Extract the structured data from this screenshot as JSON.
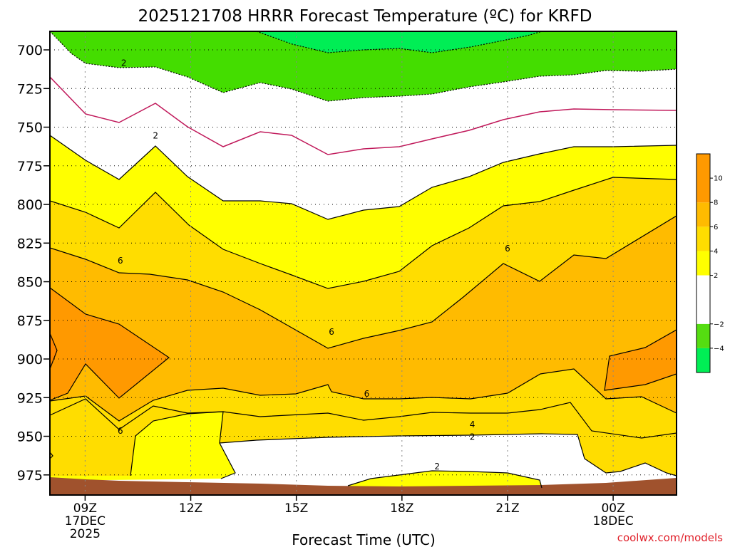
{
  "chart_data": {
    "type": "heatmap",
    "title": "2025121708 HRRR Forecast Temperature (ºC) for KRFD",
    "xlabel": "Forecast Time (UTC)",
    "ylabel": "",
    "credit": "coolwx.com/models",
    "x_hours": [
      8,
      25.8
    ],
    "y_pressure_hPa": [
      988,
      688
    ],
    "y_ticks": [
      700,
      725,
      750,
      775,
      800,
      825,
      850,
      875,
      900,
      925,
      950,
      975
    ],
    "y_tick_labels": [
      "700",
      "725",
      "750",
      "775",
      "800",
      "825",
      "850",
      "875",
      "900",
      "925",
      "950",
      "975"
    ],
    "x_ticks": [
      {
        "hour": 9,
        "label": "09Z",
        "date": "17DEC",
        "year": "2025"
      },
      {
        "hour": 12,
        "label": "12Z",
        "date": "",
        "year": ""
      },
      {
        "hour": 15,
        "label": "15Z",
        "date": "",
        "year": ""
      },
      {
        "hour": 18,
        "label": "18Z",
        "date": "",
        "year": ""
      },
      {
        "hour": 21,
        "label": "21Z",
        "date": "",
        "year": ""
      },
      {
        "hour": 24,
        "label": "00Z",
        "date": "18DEC",
        "year": ""
      }
    ],
    "colorbar": {
      "levels": [
        -6,
        -4,
        -2,
        0,
        2,
        4,
        6,
        8,
        10,
        12
      ],
      "tick_labels": [
        "−4",
        "−2",
        "2",
        "4",
        "6",
        "8",
        "10"
      ],
      "tick_values": [
        -4,
        -2,
        2,
        4,
        6,
        8,
        10
      ],
      "colors": [
        "#00ee55",
        "#55dd11",
        "#ffffff",
        "#ffff00",
        "#ffdd00",
        "#ffbb00",
        "#ff9900"
      ]
    },
    "contour_labels": [
      {
        "text": "2",
        "hour": 10.1,
        "p": 708
      },
      {
        "text": "2",
        "hour": 11.0,
        "p": 755
      },
      {
        "text": "6",
        "hour": 10.0,
        "p": 836
      },
      {
        "text": "6",
        "hour": 16.0,
        "p": 882
      },
      {
        "text": "6",
        "hour": 17.0,
        "p": 922
      },
      {
        "text": "4",
        "hour": 20.0,
        "p": 942
      },
      {
        "text": "2",
        "hour": 20.0,
        "p": 950
      },
      {
        "text": "2",
        "hour": 19.0,
        "p": 969
      },
      {
        "text": "6",
        "hour": 10.0,
        "p": 946
      },
      {
        "text": "6",
        "hour": 21.0,
        "p": 828
      }
    ]
  }
}
